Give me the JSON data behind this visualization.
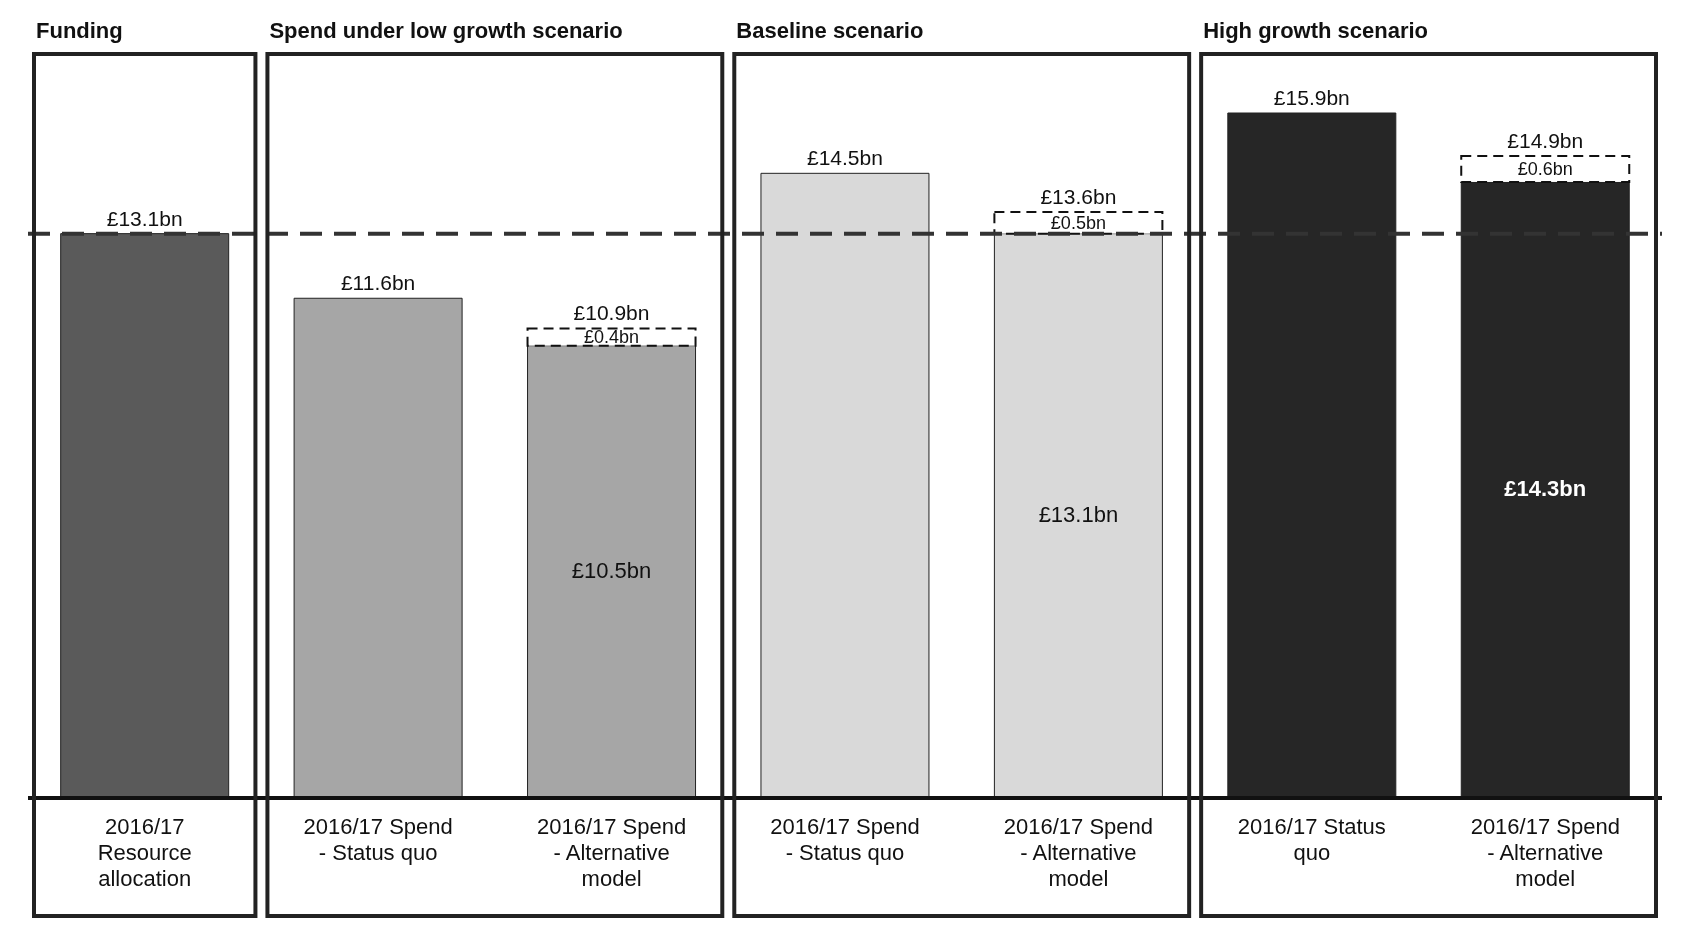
{
  "chart_data": {
    "type": "bar",
    "stacked": true,
    "annotations": [
      "Funding",
      "Spend under low growth scenario",
      "Baseline scenario",
      "High growth scenario"
    ],
    "categories": [
      "2016/17 Resource allocation",
      "2016/17 Spend - Status quo",
      "2016/17 Spend - Alternative model",
      "2016/17 Spend - Status quo",
      "2016/17 Spend - Alternative model",
      "2016/17 Status quo",
      "2016/17 Spend - Alternative model"
    ],
    "series": [
      {
        "colors": [
          "#5a5a5a",
          "#a6a6a6",
          "#a6a6a6",
          "#d9d9d9",
          "#d9d9d9",
          "#262626",
          "#262626"
        ],
        "values": [
          13.1,
          11.6,
          10.5,
          14.5,
          13.1,
          15.9,
          14.3
        ],
        "value_labels": [
          "£13.1bn",
          "£11.6bn",
          "£10.5bn",
          "£14.5bn",
          "£13.1bn",
          "£15.9bn",
          "£14.3bn"
        ]
      },
      {
        "color": "#ffffff",
        "line_style": "dashed",
        "values": [
          null,
          null,
          0.4,
          null,
          0.5,
          null,
          0.6
        ],
        "value_labels": [
          null,
          null,
          "£0.4bn",
          null,
          "£0.5bn",
          null,
          "£0.6bn"
        ]
      }
    ],
    "totals": [
      null,
      null,
      "£10.9bn",
      null,
      "£13.6bn",
      null,
      "£14.9bn"
    ],
    "ref_lines": [
      {
        "axis": "y",
        "value": 13.1,
        "color": "#333333",
        "line_style": "dashed"
      }
    ]
  }
}
